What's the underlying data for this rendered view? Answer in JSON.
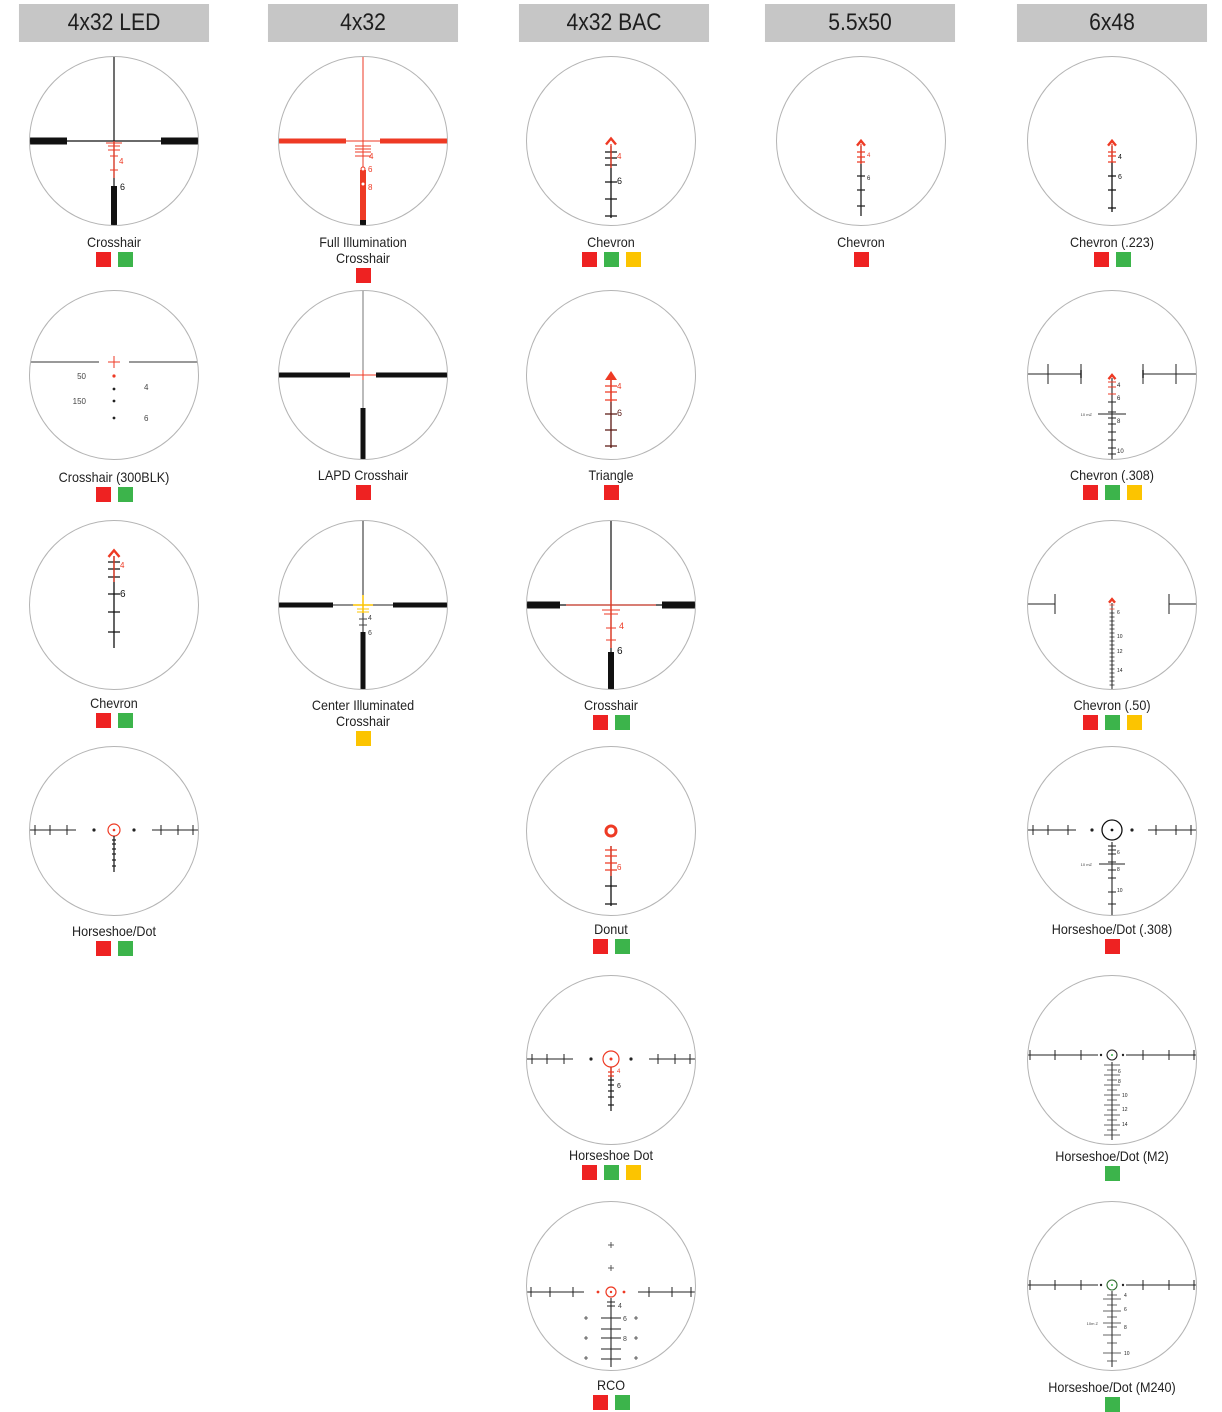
{
  "colors": {
    "red": "#ee2222",
    "green": "#3cb44b",
    "yellow": "#fcc400",
    "reticle_red": "#ee3a24",
    "ring": "#b4b4b4"
  },
  "columns": [
    {
      "title": "4x32 LED",
      "items": [
        {
          "label": [
            "Crosshair"
          ],
          "colors": [
            "red",
            "green"
          ],
          "icon": "led-crosshair-reticle-icon"
        },
        {
          "label": [
            "Crosshair (300BLK)"
          ],
          "colors": [
            "red",
            "green"
          ],
          "icon": "crosshair-300blk-reticle-icon",
          "range_marks": [
            "50",
            "150"
          ],
          "ticks": [
            "4",
            "6"
          ]
        },
        {
          "label": [
            "Chevron"
          ],
          "colors": [
            "red",
            "green"
          ],
          "icon": "chevron-reticle-icon",
          "ticks": [
            "4",
            "6"
          ]
        },
        {
          "label": [
            "Horseshoe/Dot"
          ],
          "colors": [
            "red",
            "green"
          ],
          "icon": "horseshoe-dot-reticle-icon"
        }
      ]
    },
    {
      "title": "4x32",
      "items": [
        {
          "label": [
            "Full Illumination",
            "Crosshair"
          ],
          "colors": [
            "red"
          ],
          "icon": "full-illumination-crosshair-reticle-icon",
          "ticks": [
            "4",
            "6",
            "8"
          ]
        },
        {
          "label": [
            "LAPD Crosshair"
          ],
          "colors": [
            "red"
          ],
          "icon": "lapd-crosshair-reticle-icon"
        },
        {
          "label": [
            "Center Illuminated",
            "Crosshair"
          ],
          "colors": [
            "yellow"
          ],
          "icon": "center-illuminated-crosshair-reticle-icon",
          "ticks": [
            "4",
            "6"
          ]
        }
      ]
    },
    {
      "title": "4x32 BAC",
      "items": [
        {
          "label": [
            "Chevron"
          ],
          "colors": [
            "red",
            "green",
            "yellow"
          ],
          "icon": "bac-chevron-reticle-icon",
          "ticks": [
            "4",
            "6"
          ]
        },
        {
          "label": [
            "Triangle"
          ],
          "colors": [
            "red"
          ],
          "icon": "triangle-reticle-icon",
          "ticks": [
            "4",
            "6"
          ]
        },
        {
          "label": [
            "Crosshair"
          ],
          "colors": [
            "red",
            "green"
          ],
          "icon": "bac-crosshair-reticle-icon",
          "ticks": [
            "4",
            "6"
          ]
        },
        {
          "label": [
            "Donut"
          ],
          "colors": [
            "red",
            "green"
          ],
          "icon": "donut-reticle-icon",
          "ticks": [
            "6"
          ]
        },
        {
          "label": [
            "Horseshoe Dot"
          ],
          "colors": [
            "red",
            "green",
            "yellow"
          ],
          "icon": "bac-horseshoe-dot-reticle-icon",
          "ticks": [
            "4",
            "6"
          ]
        },
        {
          "label": [
            "RCO"
          ],
          "colors": [
            "red",
            "green"
          ],
          "icon": "rco-reticle-icon",
          "ticks": [
            "4",
            "6",
            "8"
          ]
        }
      ]
    },
    {
      "title": "5.5x50",
      "items": [
        {
          "label": [
            "Chevron"
          ],
          "colors": [
            "red"
          ],
          "icon": "chevron-5-5x50-reticle-icon",
          "ticks": [
            "4",
            "6"
          ]
        }
      ]
    },
    {
      "title": "6x48",
      "items": [
        {
          "label": [
            "Chevron (.223)"
          ],
          "colors": [
            "red",
            "green"
          ],
          "icon": "chevron-223-reticle-icon",
          "ticks": [
            "4",
            "6"
          ]
        },
        {
          "label": [
            "Chevron (.308)"
          ],
          "colors": [
            "red",
            "green",
            "yellow"
          ],
          "icon": "chevron-308-reticle-icon",
          "ticks": [
            "4",
            "6",
            "8",
            "10"
          ]
        },
        {
          "label": [
            "Chevron (.50)"
          ],
          "colors": [
            "red",
            "green",
            "yellow"
          ],
          "icon": "chevron-50-reticle-icon",
          "ticks": [
            "6",
            "10",
            "12",
            "14"
          ]
        },
        {
          "label": [
            "Horseshoe/Dot (.308)"
          ],
          "colors": [
            "red"
          ],
          "icon": "horseshoe-dot-308-reticle-icon",
          "ticks": [
            "6",
            "8",
            "10"
          ]
        },
        {
          "label": [
            "Horseshoe/Dot (M2)"
          ],
          "colors": [
            "green"
          ],
          "icon": "horseshoe-dot-m2-reticle-icon",
          "ticks": [
            "6",
            "8",
            "10",
            "12",
            "14"
          ]
        },
        {
          "label": [
            "Horseshoe/Dot (M240)"
          ],
          "colors": [
            "green"
          ],
          "icon": "horseshoe-dot-m240-reticle-icon",
          "ticks": [
            "4",
            "6",
            "8",
            "10"
          ]
        }
      ]
    }
  ]
}
